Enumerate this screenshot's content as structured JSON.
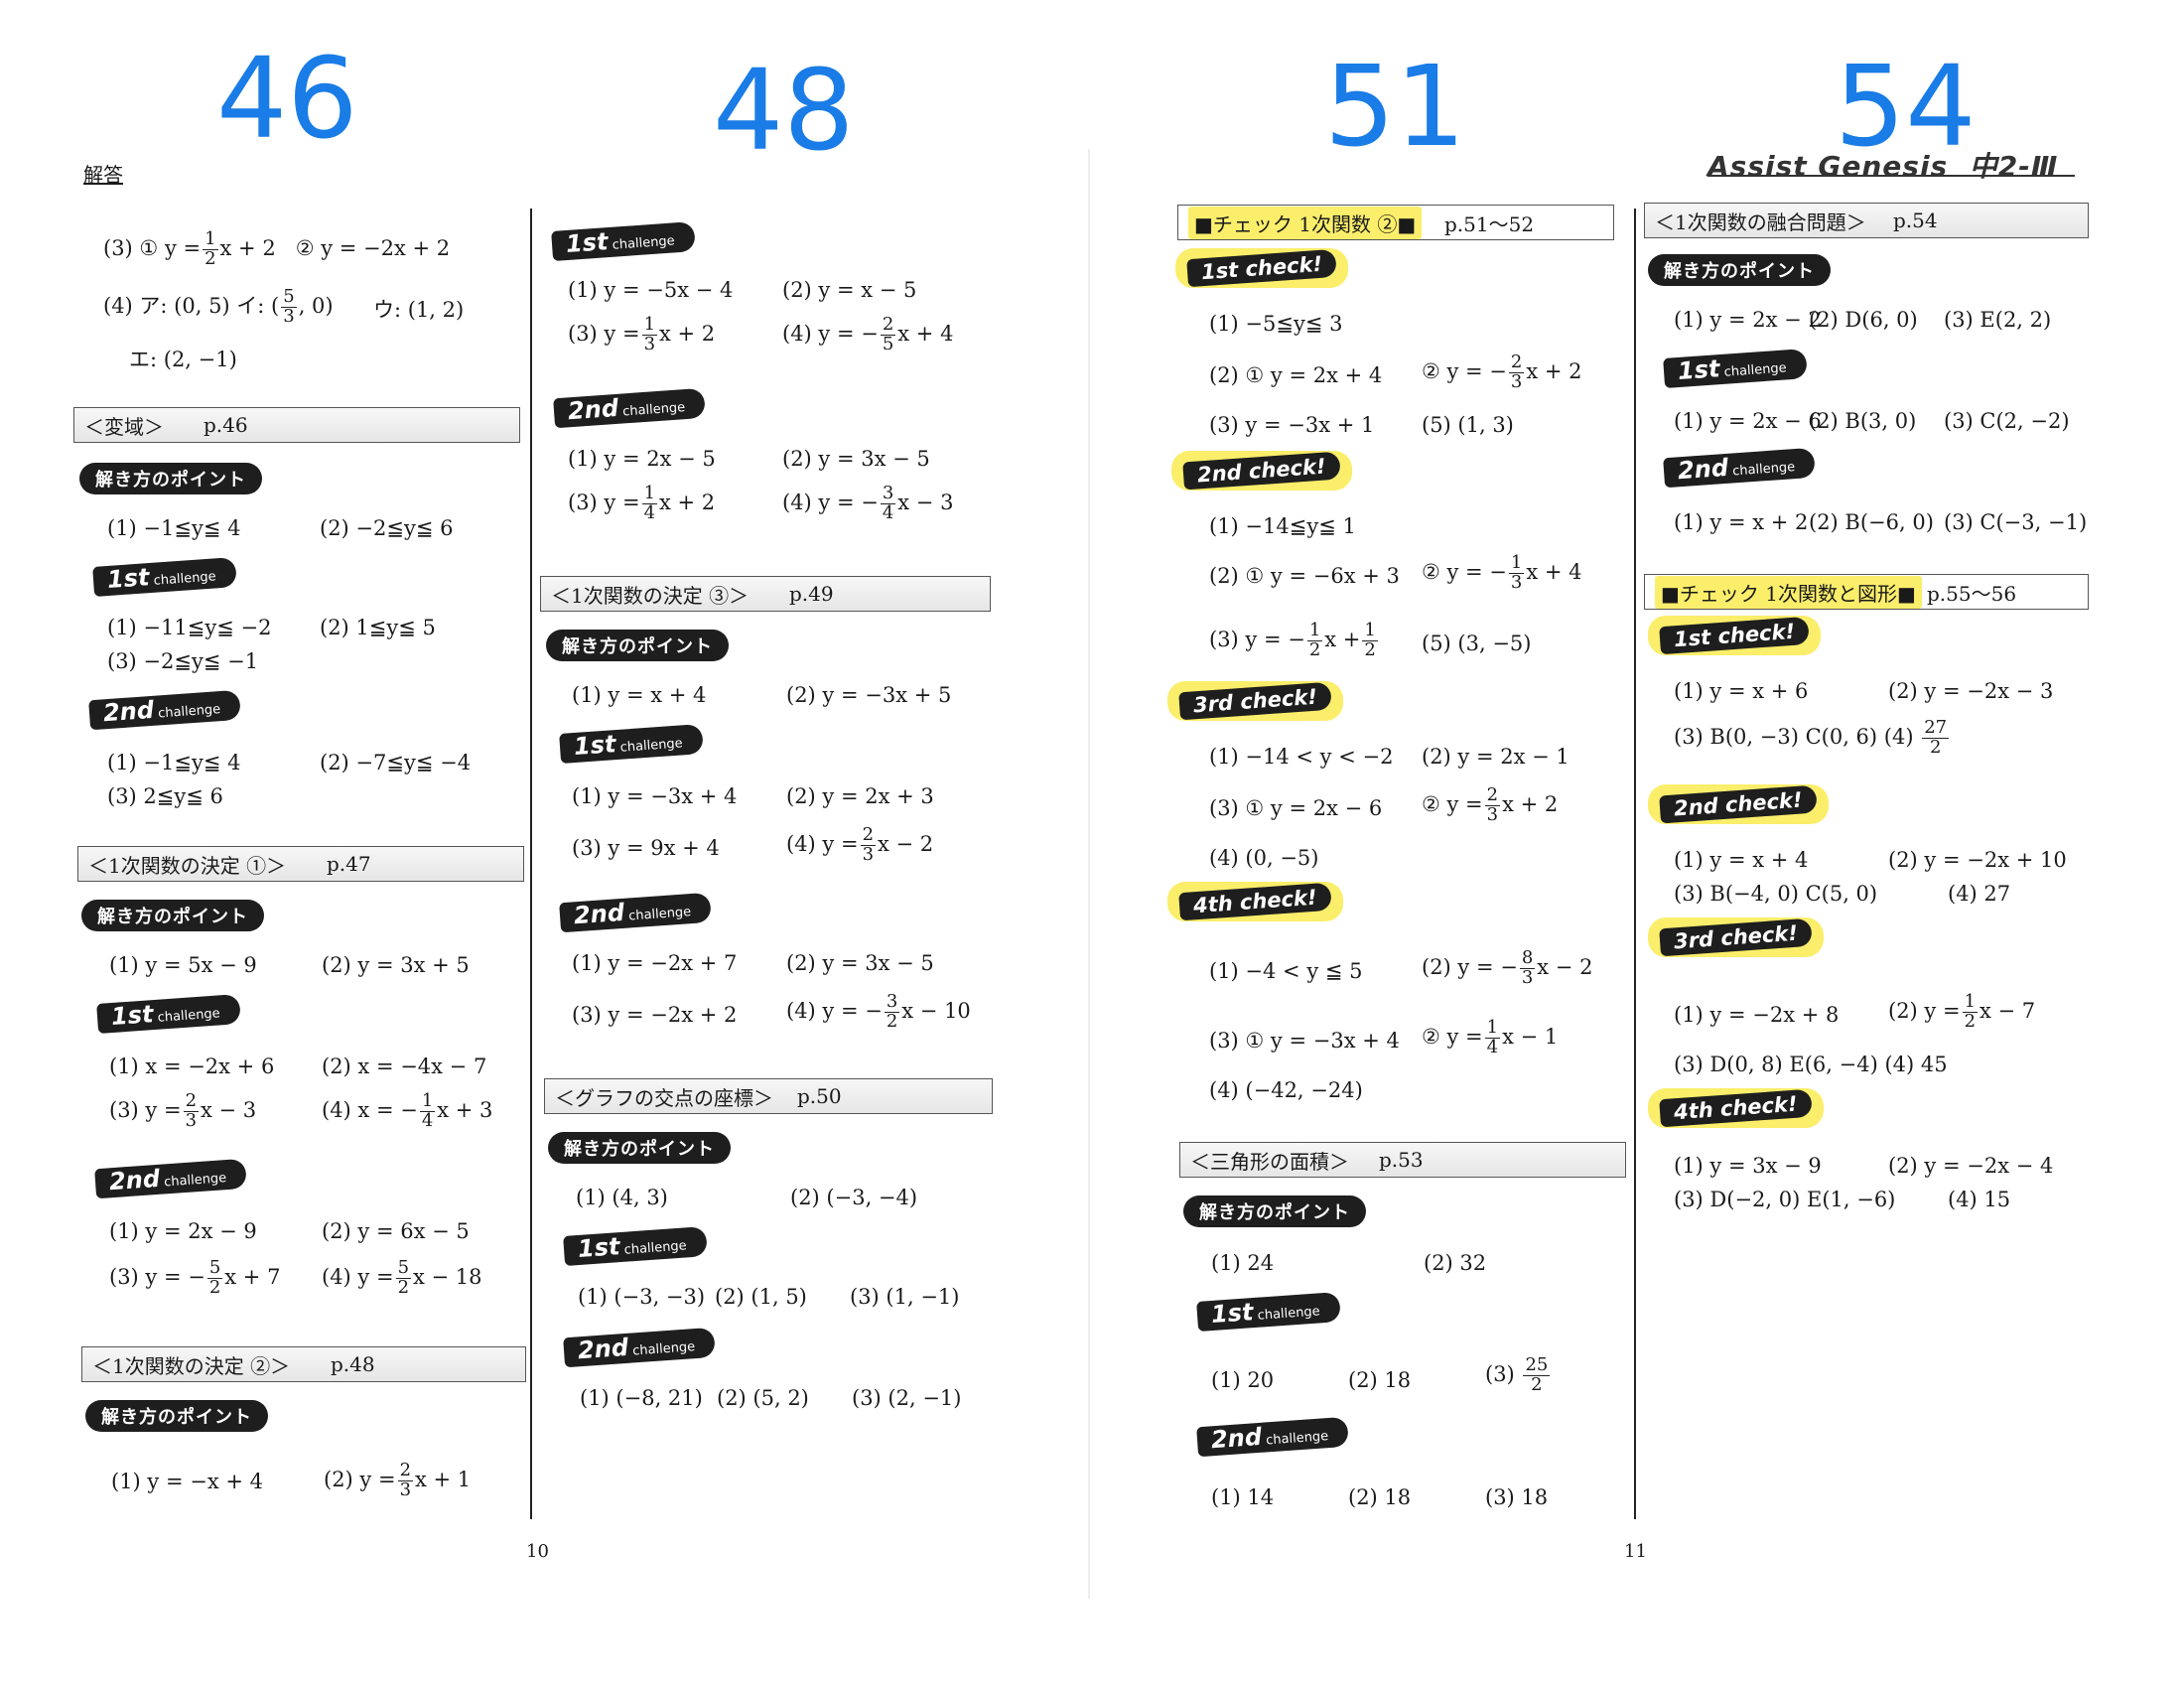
{
  "big_numbers": [
    "46",
    "48",
    "51",
    "54"
  ],
  "header": {
    "kaitou": "解答",
    "logo": "Assist Genesis",
    "logo_suffix": "中2-Ⅲ"
  },
  "page_numbers": {
    "left": "10",
    "right": "11"
  },
  "labels": {
    "points": "解き方のポイント",
    "first": "1st",
    "second": "2nd",
    "challenge": "challenge",
    "c1": "1st check!",
    "c2": "2nd check!",
    "c3": "3rd check!",
    "c4": "4th check!"
  },
  "col1": {
    "top_r1": {
      "a": "(3) ①",
      "b": "y =",
      "fn": "1",
      "fd": "2",
      "c": "x + 2",
      "d": "② y = −2x + 2"
    },
    "top_r2": {
      "a": "(4) ア: (0, 5)  イ: (",
      "fn": "5",
      "fd": "3",
      "b": ", 0)",
      "c": "ウ: (1, 2)"
    },
    "top_r3": "エ: (2, −1)",
    "hen": {
      "title": "＜変域＞",
      "page": "p.46",
      "pt": [
        "(1) −1≦y≦ 4",
        "(2) −2≦y≦ 6"
      ],
      "c1": [
        "(1) −11≦y≦ −2",
        "(2) 1≦y≦ 5",
        "(3) −2≦y≦ −1"
      ],
      "c2": [
        "(1) −1≦y≦ 4",
        "(2) −7≦y≦ −4",
        "(3) 2≦y≦ 6"
      ]
    },
    "k1": {
      "title": "＜1次関数の決定 ①＞",
      "page": "p.47",
      "pt": [
        "(1) y = 5x − 9",
        "(2) y = 3x + 5"
      ],
      "c1": [
        "(1) x = −2x + 6",
        "(2) x = −4x − 7"
      ],
      "c1b": {
        "a": "(3) y =",
        "an": "2",
        "ad": "3",
        "at": "x − 3",
        "b": "(4) x = −",
        "bn": "1",
        "bd": "4",
        "bt": "x + 3"
      },
      "c2": [
        "(1) y = 2x − 9",
        "(2) y = 6x − 5"
      ],
      "c2b": {
        "a": "(3) y = −",
        "an": "5",
        "ad": "2",
        "at": "x + 7",
        "b": "(4) y =",
        "bn": "5",
        "bd": "2",
        "bt": "x − 18"
      }
    },
    "k2": {
      "title": "＜1次関数の決定 ②＞",
      "page": "p.48",
      "pt": {
        "a": "(1) y = −x + 4",
        "b": "(2) y =",
        "bn": "2",
        "bd": "3",
        "bt": "x + 1"
      }
    }
  },
  "col2": {
    "c1": [
      "(1) y = −5x − 4",
      "(2) y = x − 5"
    ],
    "c1b": {
      "a": "(3) y =",
      "an": "1",
      "ad": "3",
      "at": "x + 2",
      "b": "(4) y = −",
      "bn": "2",
      "bd": "5",
      "bt": "x + 4"
    },
    "c2": [
      "(1) y = 2x − 5",
      "(2) y = 3x − 5"
    ],
    "c2b": {
      "a": "(3) y =",
      "an": "1",
      "ad": "4",
      "at": "x + 2",
      "b": "(4) y = −",
      "bn": "3",
      "bd": "4",
      "bt": "x − 3"
    },
    "k3": {
      "title": "＜1次関数の決定 ③＞",
      "page": "p.49",
      "pt": [
        "(1) y = x + 4",
        "(2) y = −3x + 5"
      ],
      "c1": [
        "(1) y = −3x + 4",
        "(2) y = 2x + 3"
      ],
      "c1b": {
        "a": "(3) y = 9x + 4",
        "b": "(4) y =",
        "bn": "2",
        "bd": "3",
        "bt": "x − 2"
      },
      "c2": [
        "(1) y = −2x + 7",
        "(2) y = 3x − 5"
      ],
      "c2b": {
        "a": "(3) y = −2x + 2",
        "b": "(4) y = −",
        "bn": "3",
        "bd": "2",
        "bt": "x − 10"
      }
    },
    "gr": {
      "title": "＜グラフの交点の座標＞",
      "page": "p.50",
      "pt": [
        "(1) (4, 3)",
        "(2) (−3, −4)"
      ],
      "c1": [
        "(1) (−3, −3)",
        "(2) (1, 5)",
        "(3) (1, −1)"
      ],
      "c2": [
        "(1) (−8, 21)",
        "(2) (5, 2)",
        "(3) (2, −1)"
      ]
    }
  },
  "col3": {
    "ch": {
      "title": "■チェック 1次関数 ②■",
      "page": "p.51～52",
      "c1": {
        "r1": "(1) −5≦y≦ 3",
        "r2a": "(2) ① y = 2x + 4",
        "r2b": "② y = −",
        "r2n": "2",
        "r2d": "3",
        "r2t": "x + 2",
        "r3a": "(3) y = −3x + 1",
        "r3b": "(5) (1, 3)"
      },
      "c2": {
        "r1": "(1) −14≦y≦ 1",
        "r2a": "(2) ① y = −6x + 3",
        "r2b": "② y = −",
        "r2n": "1",
        "r2d": "3",
        "r2t": "x + 4",
        "r3a": "(3) y = −",
        "r3n1": "1",
        "r3d1": "2",
        "r3m": "x +",
        "r3n2": "1",
        "r3d2": "2",
        "r3b": "(5) (3, −5)"
      },
      "c3": {
        "r1a": "(1) −14 < y < −2",
        "r1b": "(2) y = 2x − 1",
        "r2a": "(3) ① y = 2x − 6",
        "r2b": "② y =",
        "r2n": "2",
        "r2d": "3",
        "r2t": "x + 2",
        "r3": "(4) (0, −5)"
      },
      "c4": {
        "r1a": "(1) −4 < y ≦ 5",
        "r1b": "(2) y = −",
        "r1n": "8",
        "r1d": "3",
        "r1t": "x − 2",
        "r2a": "(3) ① y = −3x + 4",
        "r2b": "② y =",
        "r2n": "1",
        "r2d": "4",
        "r2t": "x − 1",
        "r3": "(4) (−42, −24)"
      }
    },
    "tri": {
      "title": "＜三角形の面積＞",
      "page": "p.53",
      "pt": [
        "(1) 24",
        "(2) 32"
      ],
      "c1": {
        "a": "(1) 20",
        "b": "(2) 18",
        "c": "(3)",
        "cn": "25",
        "cd": "2"
      },
      "c2": [
        "(1) 14",
        "(2) 18",
        "(3) 18"
      ]
    }
  },
  "col4": {
    "fu": {
      "title": "＜1次関数の融合問題＞",
      "page": "p.54",
      "pt": [
        "(1) y = 2x − 2",
        "(2) D(6, 0)",
        "(3) E(2, 2)"
      ],
      "c1": [
        "(1) y = 2x − 6",
        "(2) B(3, 0)",
        "(3) C(2, −2)"
      ],
      "c2": [
        "(1) y = x + 2",
        "(2) B(−6, 0)",
        "(3) C(−3, −1)"
      ]
    },
    "ch": {
      "title": "■チェック 1次関数と図形■",
      "page": "p.55～56",
      "c1": {
        "r1a": "(1) y = x + 6",
        "r1b": "(2) y = −2x − 3",
        "r2": "(3) B(0, −3)  C(0, 6)  (4)",
        "r2n": "27",
        "r2d": "2"
      },
      "c2": {
        "r1a": "(1) y = x + 4",
        "r1b": "(2) y = −2x + 10",
        "r2a": "(3) B(−4, 0)  C(5, 0)",
        "r2b": "(4) 27"
      },
      "c3": {
        "r1a": "(1) y = −2x + 8",
        "r1b": "(2) y =",
        "r1n": "1",
        "r1d": "2",
        "r1t": "x − 7",
        "r2": "(3) D(0, 8)  E(6, −4)  (4) 45"
      },
      "c4": {
        "r1a": "(1) y = 3x − 9",
        "r1b": "(2) y = −2x − 4",
        "r2a": "(3) D(−2, 0)  E(1, −6)",
        "r2b": "(4) 15"
      }
    }
  }
}
